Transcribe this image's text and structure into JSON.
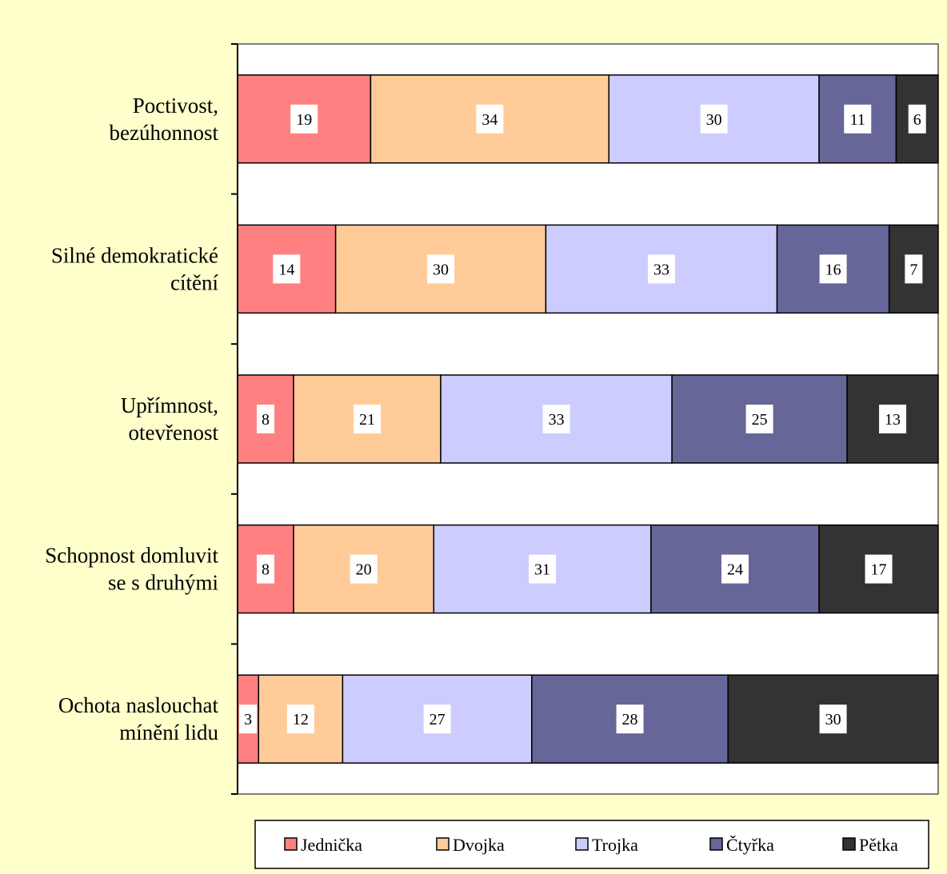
{
  "chart_data": {
    "type": "bar",
    "orientation": "horizontal",
    "stacked": true,
    "categories": [
      [
        "Poctivost,",
        "bezúhonnost"
      ],
      [
        "Silné demokratické",
        "cítění"
      ],
      [
        "Upřímnost,",
        "otevřenost"
      ],
      [
        "Schopnost domluvit",
        "se s druhými"
      ],
      [
        "Ochota naslouchat",
        "mínění lidu"
      ]
    ],
    "series": [
      {
        "name": "Jednička",
        "color": "#ff8080",
        "values": [
          19,
          14,
          8,
          8,
          3
        ]
      },
      {
        "name": "Dvojka",
        "color": "#ffcc99",
        "values": [
          34,
          30,
          21,
          20,
          12
        ]
      },
      {
        "name": "Trojka",
        "color": "#ccccff",
        "values": [
          30,
          33,
          33,
          31,
          27
        ]
      },
      {
        "name": "Čtyřka",
        "color": "#666699",
        "values": [
          11,
          16,
          25,
          24,
          28
        ]
      },
      {
        "name": "Pětka",
        "color": "#333333",
        "values": [
          6,
          7,
          13,
          17,
          30
        ]
      }
    ],
    "xlim": [
      0,
      100
    ],
    "data_labels": true,
    "legend_position": "bottom",
    "grid": false,
    "plot_background": "#ffffff",
    "page_background": "#ffffcc"
  }
}
